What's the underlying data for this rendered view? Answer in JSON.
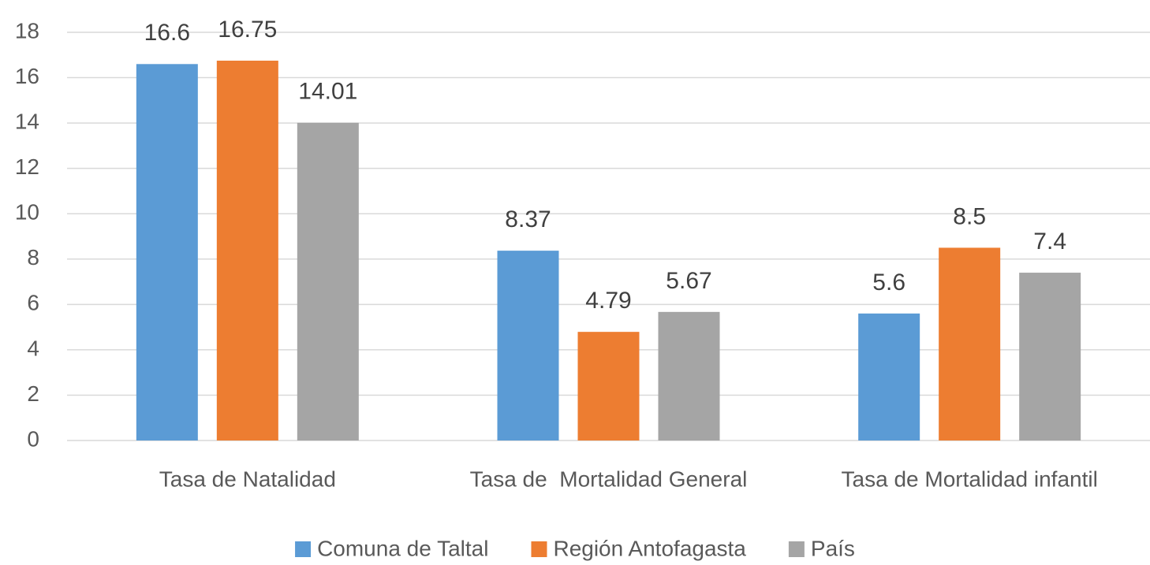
{
  "chart_data": {
    "type": "bar",
    "categories": [
      "Tasa de Natalidad",
      "Tasa de  Mortalidad General",
      "Tasa de Mortalidad infantil"
    ],
    "series": [
      {
        "name": "Comuna de Taltal",
        "color": "#5b9bd5",
        "values": [
          16.6,
          8.37,
          5.6
        ]
      },
      {
        "name": "Región Antofagasta",
        "color": "#ed7d31",
        "values": [
          16.75,
          4.79,
          8.5
        ]
      },
      {
        "name": "País",
        "color": "#a5a5a5",
        "values": [
          14.01,
          5.67,
          7.4
        ]
      }
    ],
    "ylim": [
      0,
      18
    ],
    "yticks": [
      0,
      2,
      4,
      6,
      8,
      10,
      12,
      14,
      16,
      18
    ],
    "grid": true,
    "legend": "bottom"
  }
}
